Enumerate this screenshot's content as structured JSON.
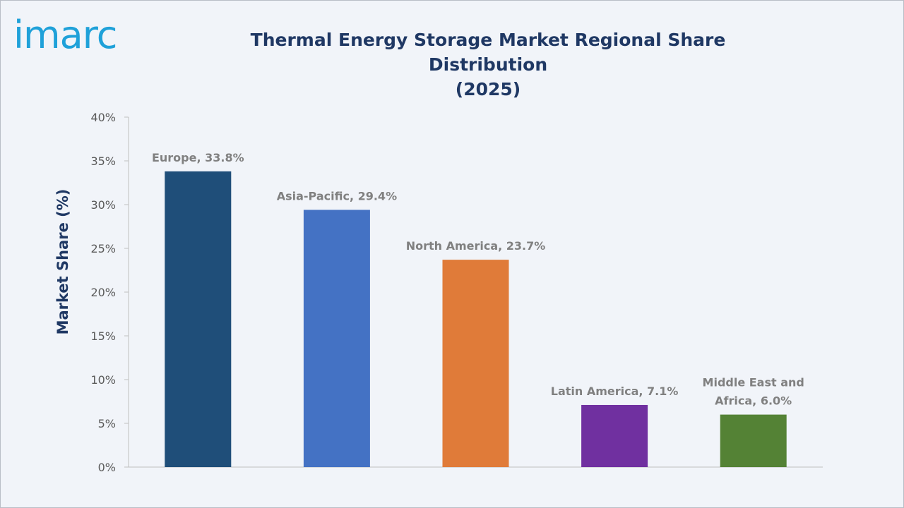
{
  "brand": {
    "logo_text": "imarc"
  },
  "chart_data": {
    "type": "bar",
    "title": "Thermal Energy Storage Market Regional Share Distribution (2025)",
    "title_lines": [
      "Thermal Energy Storage Market Regional Share Distribution",
      "(2025)"
    ],
    "xlabel": "",
    "ylabel": "Market Share (%)",
    "ylim": [
      0,
      40
    ],
    "yticks": [
      0,
      5,
      10,
      15,
      20,
      25,
      30,
      35,
      40
    ],
    "ytick_labels": [
      "0%",
      "5%",
      "10%",
      "15%",
      "20%",
      "25%",
      "30%",
      "35%",
      "40%"
    ],
    "categories": [
      "Europe",
      "Asia-Pacific",
      "North America",
      "Latin America",
      "Middle East and Africa"
    ],
    "values": [
      33.8,
      29.4,
      23.7,
      7.1,
      6.0
    ],
    "colors": [
      "#1f4e79",
      "#4472c4",
      "#e07b39",
      "#7030a0",
      "#548235"
    ],
    "data_labels": [
      [
        "Europe, 33.8%"
      ],
      [
        "Asia-Pacific, 29.4%"
      ],
      [
        "North America, 23.7%"
      ],
      [
        "Latin America, 7.1%"
      ],
      [
        "Middle East and",
        "Africa, 6.0%"
      ]
    ],
    "grid": false,
    "legend": "none"
  }
}
